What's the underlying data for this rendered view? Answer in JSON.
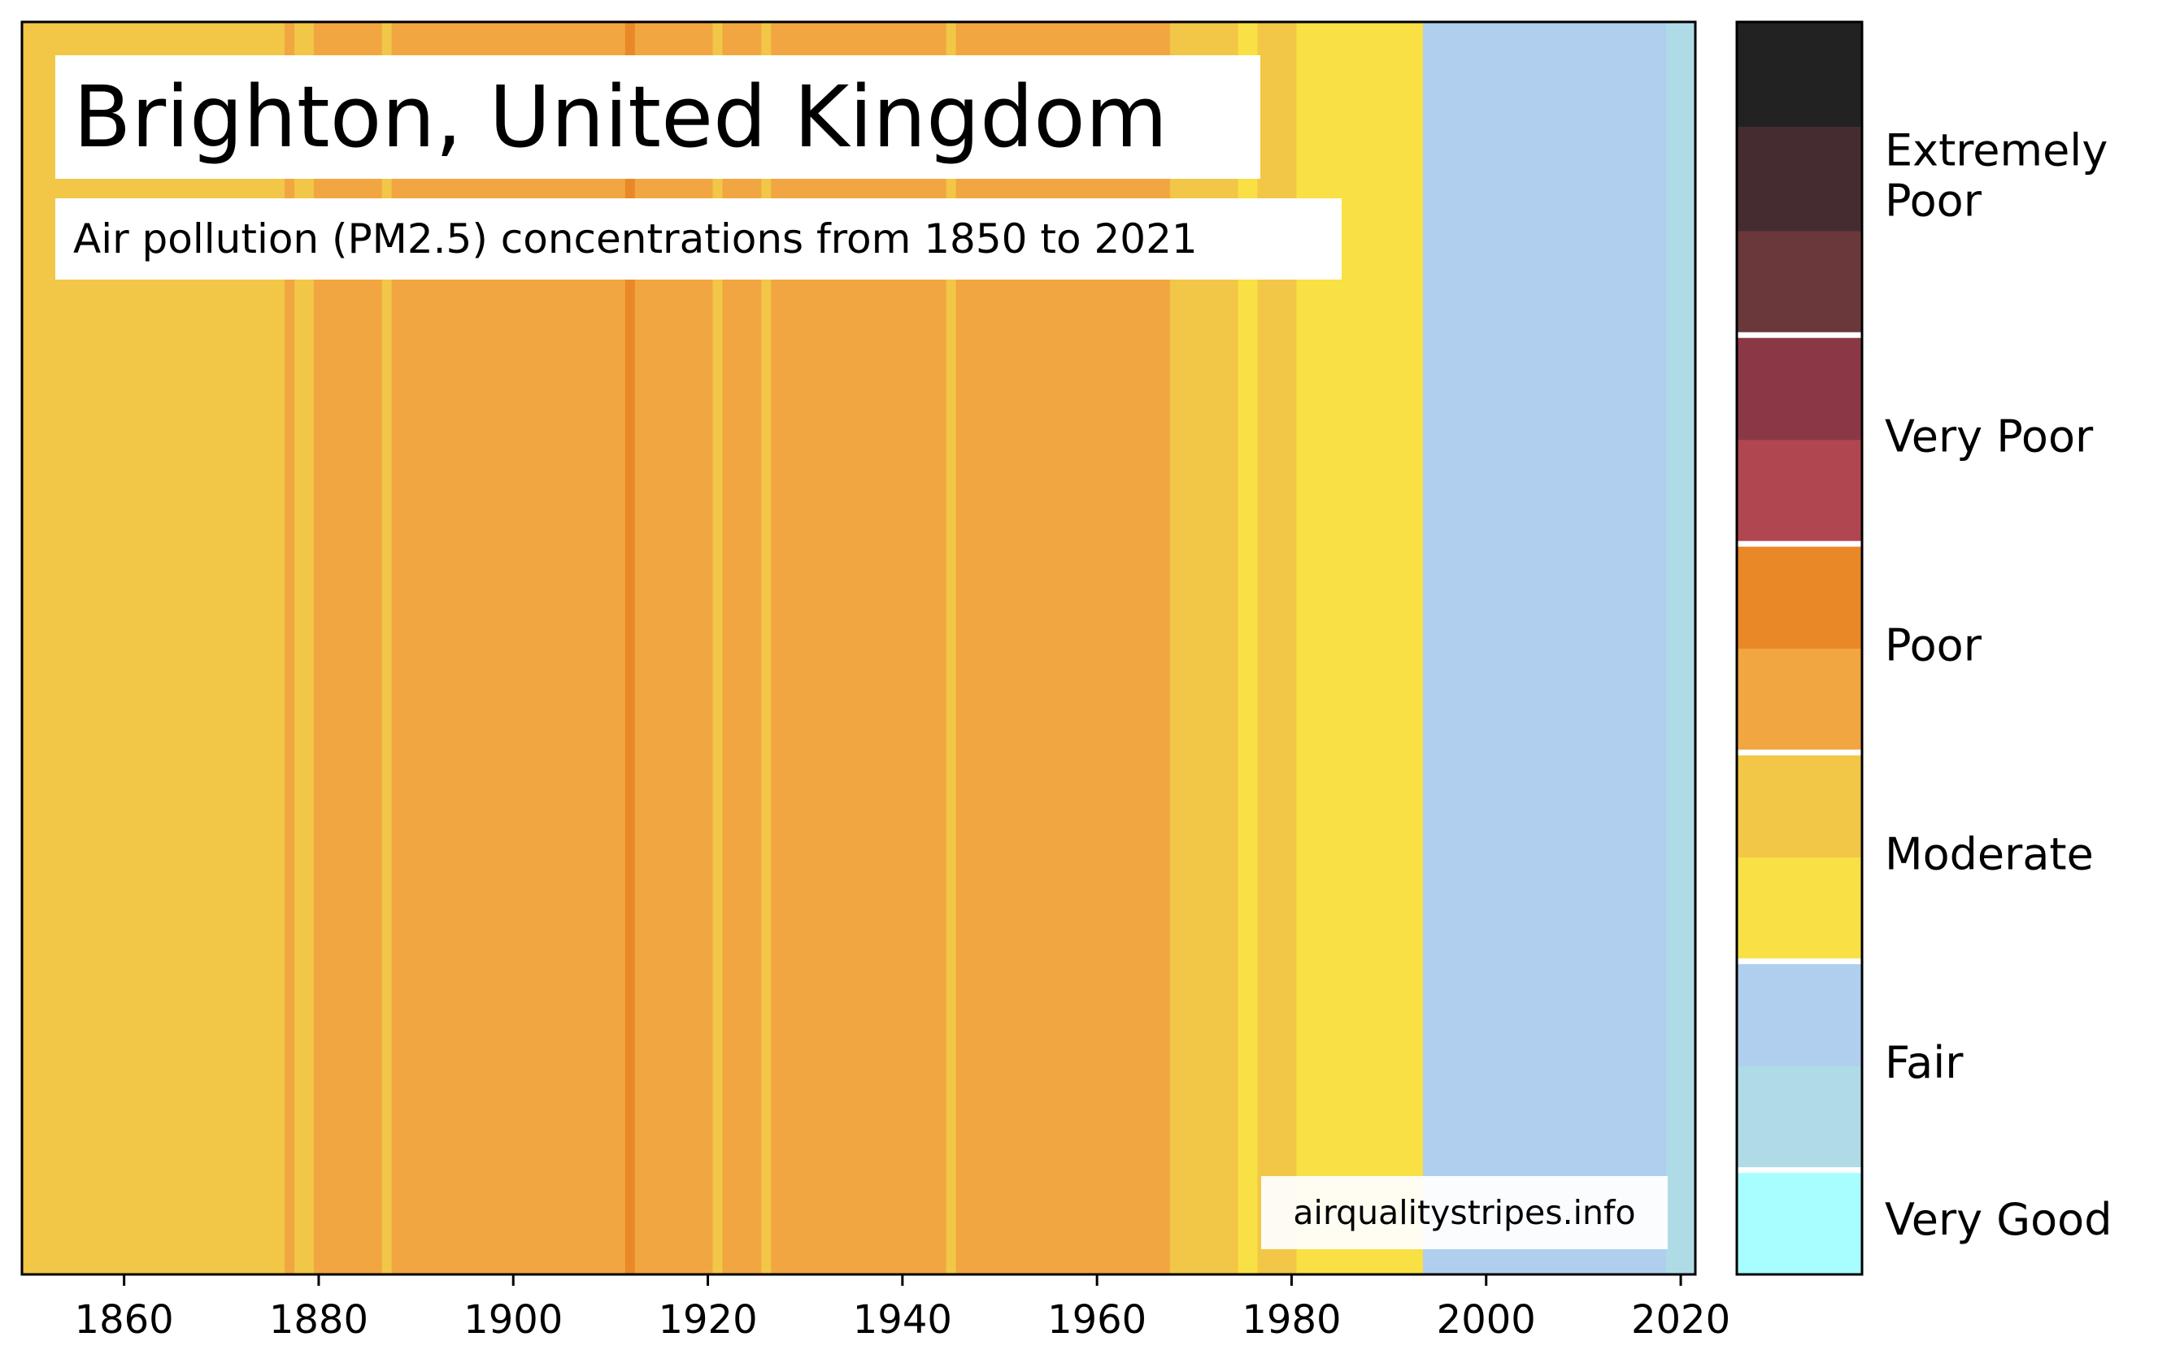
{
  "chart_data": {
    "type": "heatmap",
    "title": "Brighton, United Kingdom",
    "subtitle": "Air pollution (PM2.5) concentrations from 1850 to 2021",
    "credit": "airqualitystripes.info",
    "xlabel": "",
    "ylabel": "",
    "xlim": [
      1849.5,
      2021.5
    ],
    "x_ticks": [
      1860,
      1880,
      1900,
      1920,
      1940,
      1960,
      1980,
      2000,
      2020
    ],
    "grid": false,
    "legend": "right colorbar",
    "colorbar": {
      "levels": [
        "#a8feff",
        "#afdbe7",
        "#b0cfee",
        "#f9e045",
        "#f2c646",
        "#f1a641",
        "#e98827",
        "#af4650",
        "#8a3845",
        "#6a373b",
        "#452c30",
        "#222222"
      ],
      "categories": [
        {
          "label": "Very Good",
          "from": 0,
          "to": 1
        },
        {
          "label": "Fair",
          "from": 1,
          "to": 3
        },
        {
          "label": "Moderate",
          "from": 3,
          "to": 5
        },
        {
          "label": "Poor",
          "from": 5,
          "to": 7
        },
        {
          "label": "Very Poor",
          "from": 7,
          "to": 9
        },
        {
          "label": "Extremely Poor",
          "from": 9,
          "to": 12
        }
      ]
    },
    "stripes": [
      {
        "from": 1849.5,
        "to": 1876.5,
        "color": "#f2c646"
      },
      {
        "from": 1876.5,
        "to": 1877.5,
        "color": "#f1a641"
      },
      {
        "from": 1877.5,
        "to": 1879.5,
        "color": "#f2c646"
      },
      {
        "from": 1879.5,
        "to": 1886.5,
        "color": "#f1a641"
      },
      {
        "from": 1886.5,
        "to": 1887.5,
        "color": "#f2c646"
      },
      {
        "from": 1887.5,
        "to": 1911.5,
        "color": "#f1a641"
      },
      {
        "from": 1911.5,
        "to": 1912.5,
        "color": "#e98827"
      },
      {
        "from": 1912.5,
        "to": 1920.5,
        "color": "#f1a641"
      },
      {
        "from": 1920.5,
        "to": 1921.5,
        "color": "#f2c646"
      },
      {
        "from": 1921.5,
        "to": 1925.5,
        "color": "#f1a641"
      },
      {
        "from": 1925.5,
        "to": 1926.5,
        "color": "#f2c646"
      },
      {
        "from": 1926.5,
        "to": 1944.5,
        "color": "#f1a641"
      },
      {
        "from": 1944.5,
        "to": 1945.5,
        "color": "#f2c646"
      },
      {
        "from": 1945.5,
        "to": 1967.5,
        "color": "#f1a641"
      },
      {
        "from": 1967.5,
        "to": 1974.5,
        "color": "#f2c646"
      },
      {
        "from": 1974.5,
        "to": 1976.5,
        "color": "#f9e045"
      },
      {
        "from": 1976.5,
        "to": 1980.5,
        "color": "#f2c646"
      },
      {
        "from": 1980.5,
        "to": 1993.5,
        "color": "#f9e045"
      },
      {
        "from": 1993.5,
        "to": 2018.5,
        "color": "#b0cfee"
      },
      {
        "from": 2018.5,
        "to": 2021.5,
        "color": "#afdbe7"
      }
    ]
  }
}
